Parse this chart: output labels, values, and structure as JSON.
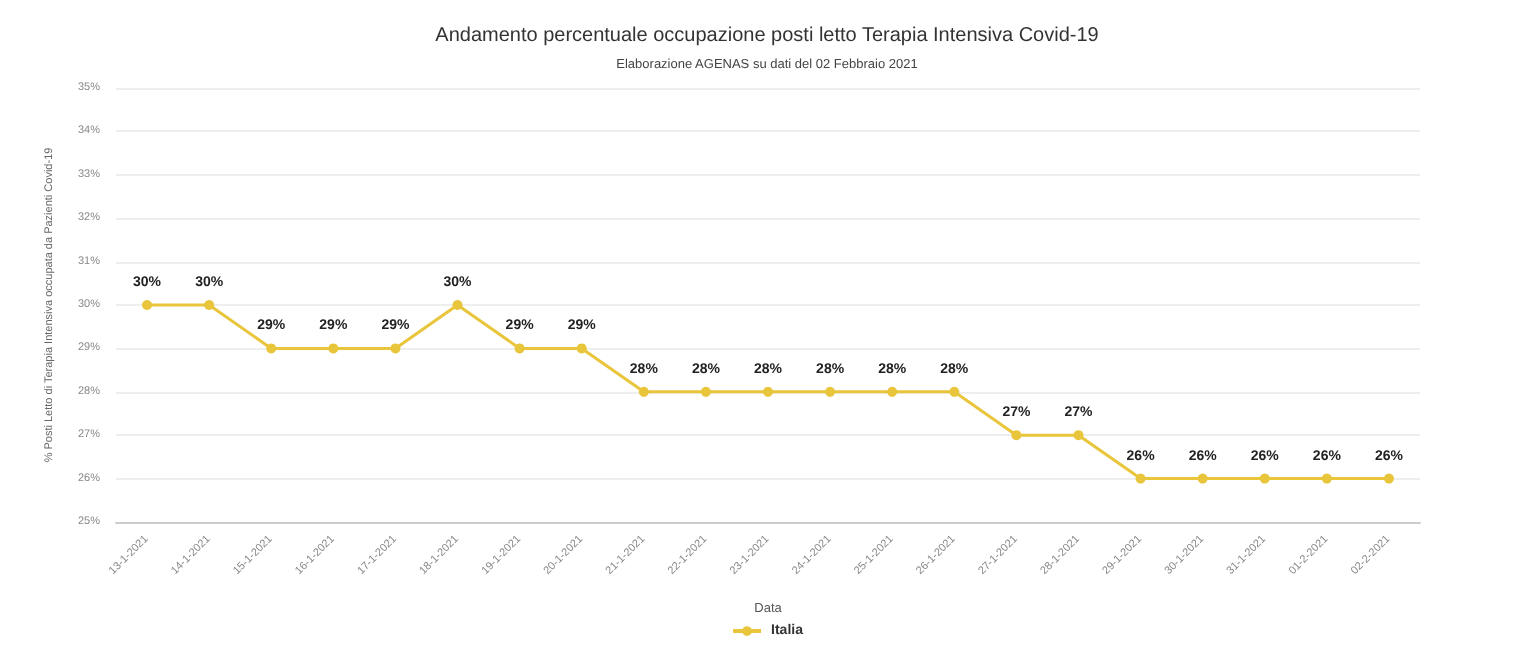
{
  "chart_data": {
    "type": "line",
    "title": "Andamento percentuale occupazione posti letto Terapia Intensiva Covid-19",
    "subtitle": "Elaborazione AGENAS su dati del 02 Febbraio 2021",
    "xlabel": "Data",
    "ylabel": "% Posti Letto di Terapia Intensiva occupata da Pazienti Covid-19",
    "categories": [
      "13-1-2021",
      "14-1-2021",
      "15-1-2021",
      "16-1-2021",
      "17-1-2021",
      "18-1-2021",
      "19-1-2021",
      "20-1-2021",
      "21-1-2021",
      "22-1-2021",
      "23-1-2021",
      "24-1-2021",
      "25-1-2021",
      "26-1-2021",
      "27-1-2021",
      "28-1-2021",
      "29-1-2021",
      "30-1-2021",
      "31-1-2021",
      "01-2-2021",
      "02-2-2021"
    ],
    "series": [
      {
        "name": "Italia",
        "color": "#e8c53a",
        "values": [
          30,
          30,
          29,
          29,
          29,
          30,
          29,
          29,
          28,
          28,
          28,
          28,
          28,
          28,
          27,
          27,
          26,
          26,
          26,
          26,
          26
        ],
        "value_labels": [
          "30%",
          "30%",
          "29%",
          "29%",
          "29%",
          "30%",
          "29%",
          "29%",
          "28%",
          "28%",
          "28%",
          "28%",
          "28%",
          "28%",
          "27%",
          "27%",
          "26%",
          "26%",
          "26%",
          "26%",
          "26%"
        ]
      }
    ],
    "ylim": [
      25,
      35
    ],
    "yticks": [
      {
        "value": 25,
        "label": "25%"
      },
      {
        "value": 26,
        "label": "26%"
      },
      {
        "value": 27,
        "label": "27%"
      },
      {
        "value": 28,
        "label": "28%"
      },
      {
        "value": 29,
        "label": "29%"
      },
      {
        "value": 30,
        "label": "30%"
      },
      {
        "value": 31,
        "label": "31%"
      },
      {
        "value": 32,
        "label": "32%"
      },
      {
        "value": 33,
        "label": "33%"
      },
      {
        "value": 34,
        "label": "34%"
      },
      {
        "value": 35,
        "label": "35%"
      }
    ],
    "grid": "y",
    "legend": "bottom",
    "marker": "circle",
    "line_style": "solid"
  }
}
